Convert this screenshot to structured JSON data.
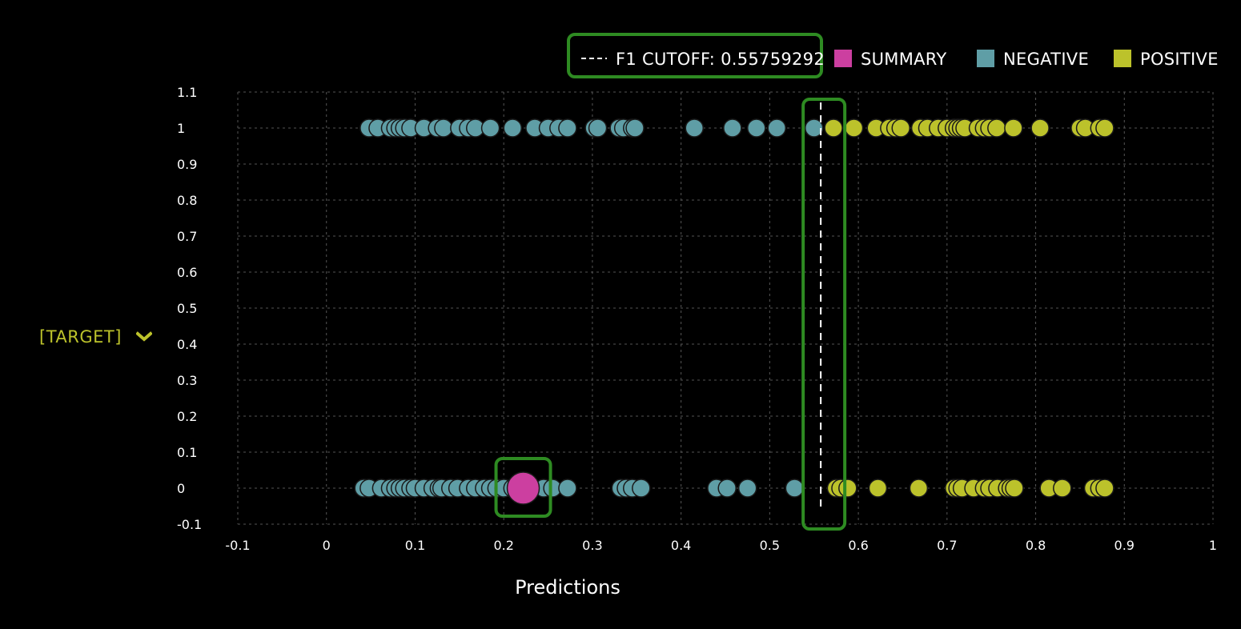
{
  "y_selector": {
    "label": "[TARGET]",
    "icon": "chevron-down-icon"
  },
  "legend": {
    "cutoff_label": "F1 CUTOFF: 0.55759292",
    "items": [
      {
        "label": "SUMMARY",
        "color": "#cc3fa0"
      },
      {
        "label": "NEGATIVE",
        "color": "#5f9ea6"
      },
      {
        "label": "POSITIVE",
        "color": "#bcc22b"
      }
    ]
  },
  "colors": {
    "background": "#000000",
    "grid": "#555555",
    "highlight": "#2e8b22",
    "cutoff_line": "#ffffff"
  },
  "chart_data": {
    "type": "scatter",
    "title": "",
    "xlabel": "Predictions",
    "ylabel": "",
    "xlim": [
      -0.1,
      1
    ],
    "ylim": [
      -0.1,
      1.1
    ],
    "x_ticks": [
      "-0.1",
      "0",
      "0.1",
      "0.2",
      "0.3",
      "0.4",
      "0.5",
      "0.6",
      "0.7",
      "0.8",
      "0.9",
      "1"
    ],
    "y_ticks": [
      "1.1",
      "1",
      "0.9",
      "0.8",
      "0.7",
      "0.6",
      "0.5",
      "0.4",
      "0.3",
      "0.2",
      "0.1",
      "0",
      "-0.1"
    ],
    "grid": true,
    "legend_position": "top-right",
    "cutoff": 0.55759292,
    "series": [
      {
        "name": "NEGATIVE",
        "color": "#5f9ea6",
        "points": [
          [
            0.048,
            1
          ],
          [
            0.058,
            1
          ],
          [
            0.072,
            1
          ],
          [
            0.078,
            1
          ],
          [
            0.083,
            1
          ],
          [
            0.088,
            1
          ],
          [
            0.095,
            1
          ],
          [
            0.11,
            1
          ],
          [
            0.125,
            1
          ],
          [
            0.132,
            1
          ],
          [
            0.15,
            1
          ],
          [
            0.16,
            1
          ],
          [
            0.168,
            1
          ],
          [
            0.185,
            1
          ],
          [
            0.21,
            1
          ],
          [
            0.235,
            1
          ],
          [
            0.25,
            1
          ],
          [
            0.262,
            1
          ],
          [
            0.272,
            1
          ],
          [
            0.302,
            1
          ],
          [
            0.306,
            1
          ],
          [
            0.33,
            1
          ],
          [
            0.335,
            1
          ],
          [
            0.345,
            1
          ],
          [
            0.348,
            1
          ],
          [
            0.415,
            1
          ],
          [
            0.458,
            1
          ],
          [
            0.485,
            1
          ],
          [
            0.508,
            1
          ],
          [
            0.55,
            1
          ],
          [
            0.042,
            0
          ],
          [
            0.048,
            0
          ],
          [
            0.062,
            0
          ],
          [
            0.072,
            0
          ],
          [
            0.078,
            0
          ],
          [
            0.083,
            0
          ],
          [
            0.088,
            0
          ],
          [
            0.095,
            0
          ],
          [
            0.1,
            0
          ],
          [
            0.11,
            0
          ],
          [
            0.12,
            0
          ],
          [
            0.127,
            0
          ],
          [
            0.13,
            0
          ],
          [
            0.14,
            0
          ],
          [
            0.148,
            0
          ],
          [
            0.16,
            0
          ],
          [
            0.168,
            0
          ],
          [
            0.178,
            0
          ],
          [
            0.185,
            0
          ],
          [
            0.192,
            0
          ],
          [
            0.2,
            0
          ],
          [
            0.21,
            0
          ],
          [
            0.245,
            0
          ],
          [
            0.255,
            0
          ],
          [
            0.272,
            0
          ],
          [
            0.332,
            0
          ],
          [
            0.338,
            0
          ],
          [
            0.345,
            0
          ],
          [
            0.355,
            0
          ],
          [
            0.44,
            0
          ],
          [
            0.452,
            0
          ],
          [
            0.475,
            0
          ],
          [
            0.528,
            0
          ]
        ]
      },
      {
        "name": "POSITIVE",
        "color": "#bcc22b",
        "points": [
          [
            0.572,
            1
          ],
          [
            0.595,
            1
          ],
          [
            0.62,
            1
          ],
          [
            0.635,
            1
          ],
          [
            0.642,
            1
          ],
          [
            0.648,
            1
          ],
          [
            0.67,
            1
          ],
          [
            0.678,
            1
          ],
          [
            0.69,
            1
          ],
          [
            0.7,
            1
          ],
          [
            0.708,
            1
          ],
          [
            0.712,
            1
          ],
          [
            0.716,
            1
          ],
          [
            0.72,
            1
          ],
          [
            0.735,
            1
          ],
          [
            0.742,
            1
          ],
          [
            0.748,
            1
          ],
          [
            0.756,
            1
          ],
          [
            0.775,
            1
          ],
          [
            0.805,
            1
          ],
          [
            0.85,
            1
          ],
          [
            0.856,
            1
          ],
          [
            0.872,
            1
          ],
          [
            0.878,
            1
          ],
          [
            0.575,
            0
          ],
          [
            0.58,
            0
          ],
          [
            0.588,
            0
          ],
          [
            0.622,
            0
          ],
          [
            0.668,
            0
          ],
          [
            0.708,
            0
          ],
          [
            0.712,
            0
          ],
          [
            0.717,
            0
          ],
          [
            0.73,
            0
          ],
          [
            0.742,
            0
          ],
          [
            0.748,
            0
          ],
          [
            0.757,
            0
          ],
          [
            0.768,
            0
          ],
          [
            0.772,
            0
          ],
          [
            0.776,
            0
          ],
          [
            0.815,
            0
          ],
          [
            0.83,
            0
          ],
          [
            0.865,
            0
          ],
          [
            0.872,
            0
          ],
          [
            0.878,
            0
          ]
        ]
      },
      {
        "name": "SUMMARY",
        "color": "#cc3fa0",
        "points": [
          [
            0.222,
            0
          ]
        ]
      }
    ]
  }
}
